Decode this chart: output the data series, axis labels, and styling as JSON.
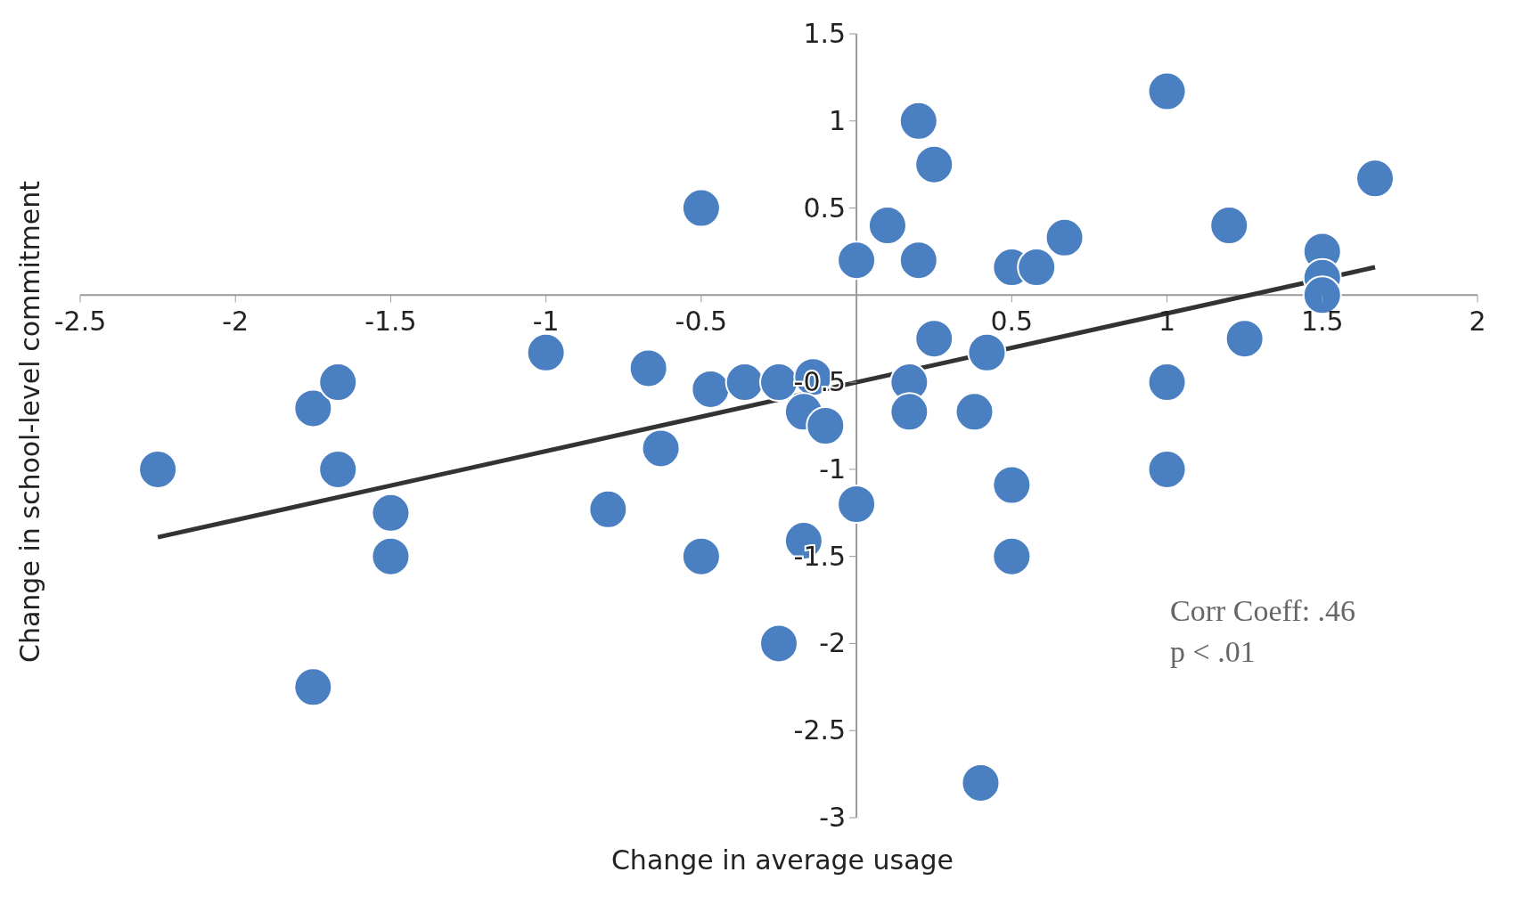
{
  "chart_data": {
    "type": "scatter",
    "xlabel": "Change in average usage",
    "ylabel": "Change in school-level commitment",
    "xlim": [
      -2.5,
      2
    ],
    "xticks": [
      -2.5,
      -2,
      -1.5,
      -1,
      -0.5,
      0.5,
      1,
      1.5,
      2
    ],
    "ylim": [
      -3,
      1.5
    ],
    "yticks": [
      -3,
      -2.5,
      -2,
      -1.5,
      -1,
      -0.5,
      0.5,
      1,
      1.5
    ],
    "annotations": [
      "Corr Coeff: .46",
      "p < .01"
    ],
    "series": [
      {
        "color": "#4a7fc1",
        "marker": "circle",
        "x": [
          -2.25,
          -1.75,
          -1.67,
          -1.67,
          -1.75,
          -1.5,
          -1.5,
          -1,
          -0.8,
          -0.67,
          -0.63,
          -0.5,
          -0.5,
          -0.47,
          -0.36,
          -0.25,
          -0.25,
          -0.14,
          -0.17,
          -0.1,
          -0.17,
          0,
          0,
          0.1,
          0.2,
          0.25,
          0.2,
          0.17,
          0.17,
          0.25,
          0.38,
          0.42,
          0.4,
          0.5,
          0.58,
          0.67,
          0.5,
          0.5,
          1,
          1,
          1,
          1.2,
          1.25,
          1.5,
          1.5,
          1.5,
          1.67
        ],
        "values": [
          -1,
          -0.65,
          -0.5,
          -1,
          -2.25,
          -1.25,
          -1.5,
          -0.33,
          -1.23,
          -0.42,
          -0.88,
          0.5,
          -1.5,
          -0.54,
          -0.5,
          -0.5,
          -2,
          -0.47,
          -0.67,
          -0.75,
          -1.41,
          0.2,
          -1.2,
          0.4,
          1,
          0.75,
          0.2,
          -0.5,
          -0.67,
          -0.25,
          -0.67,
          -0.33,
          -2.8,
          0.16,
          0.16,
          0.33,
          -1.09,
          -1.5,
          1.17,
          -0.5,
          -1,
          0.4,
          -0.25,
          0.25,
          0.1,
          0,
          0.67
        ]
      },
      {
        "type": "line",
        "color": "#333333",
        "x": [
          -2.25,
          1.67
        ],
        "values": [
          -1.39,
          0.16
        ]
      }
    ]
  }
}
